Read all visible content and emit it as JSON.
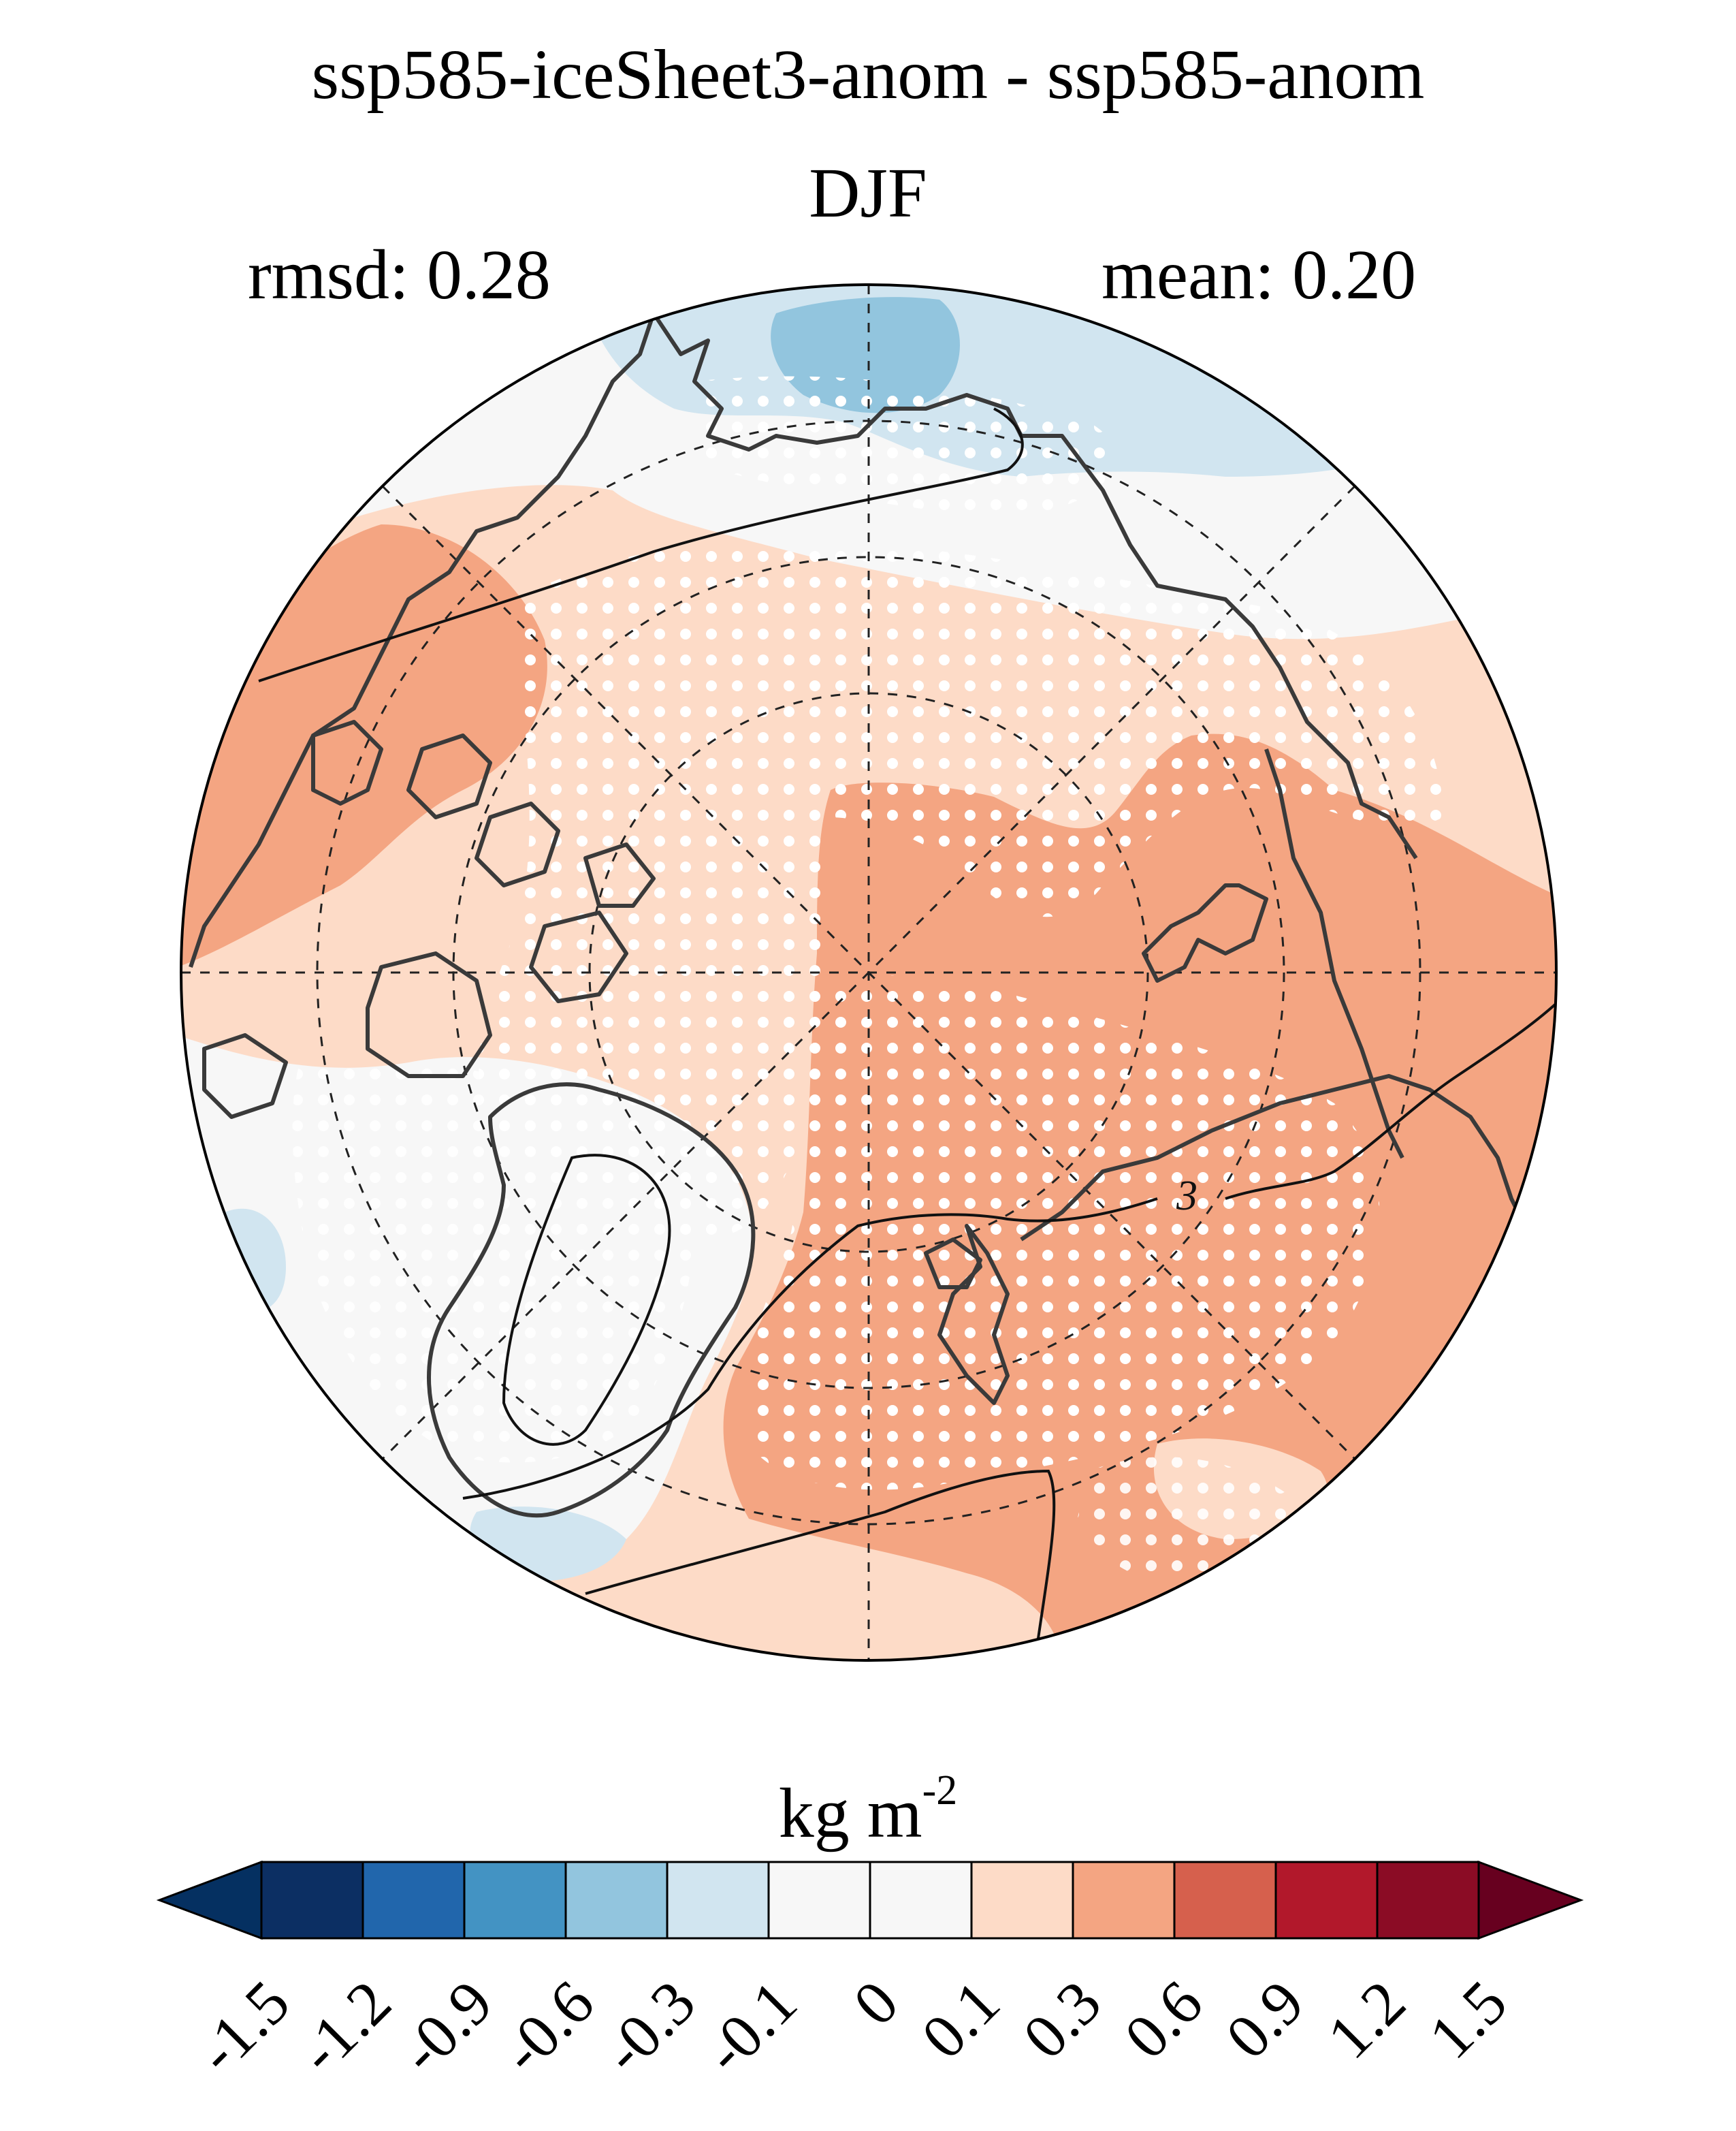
{
  "header": {
    "title": "ssp585-iceSheet3-anom - ssp585-anom",
    "season": "DJF",
    "rmsd_text": "rmsd: 0.28",
    "mean_text": "mean: 0.20"
  },
  "map": {
    "projection": "north-polar-stereographic",
    "contour_label": "3",
    "stippling": "white dots mark significant regions",
    "colors": {
      "ocean_neutral": "#f7f7f7",
      "light_pos": "#fddbc7",
      "med_pos": "#f4a582",
      "light_neg": "#d1e5f0",
      "med_neg": "#92c5de",
      "coast": "#3a3a3a"
    }
  },
  "colorbar": {
    "units_base": "kg m",
    "units_exp": "-2",
    "extend": "both",
    "ticks": [
      "-1.5",
      "-1.2",
      "-0.9",
      "-0.6",
      "-0.3",
      "-0.1",
      "0",
      "0.1",
      "0.3",
      "0.6",
      "0.9",
      "1.2",
      "1.5"
    ],
    "colors": [
      "#053061",
      "#0c2f63",
      "#2166ac",
      "#4393c3",
      "#92c5de",
      "#d1e5f0",
      "#f7f7f7",
      "#f7f7f7",
      "#fddbc7",
      "#f4a582",
      "#d6604d",
      "#b2182b",
      "#8b0c25",
      "#67001f"
    ]
  }
}
